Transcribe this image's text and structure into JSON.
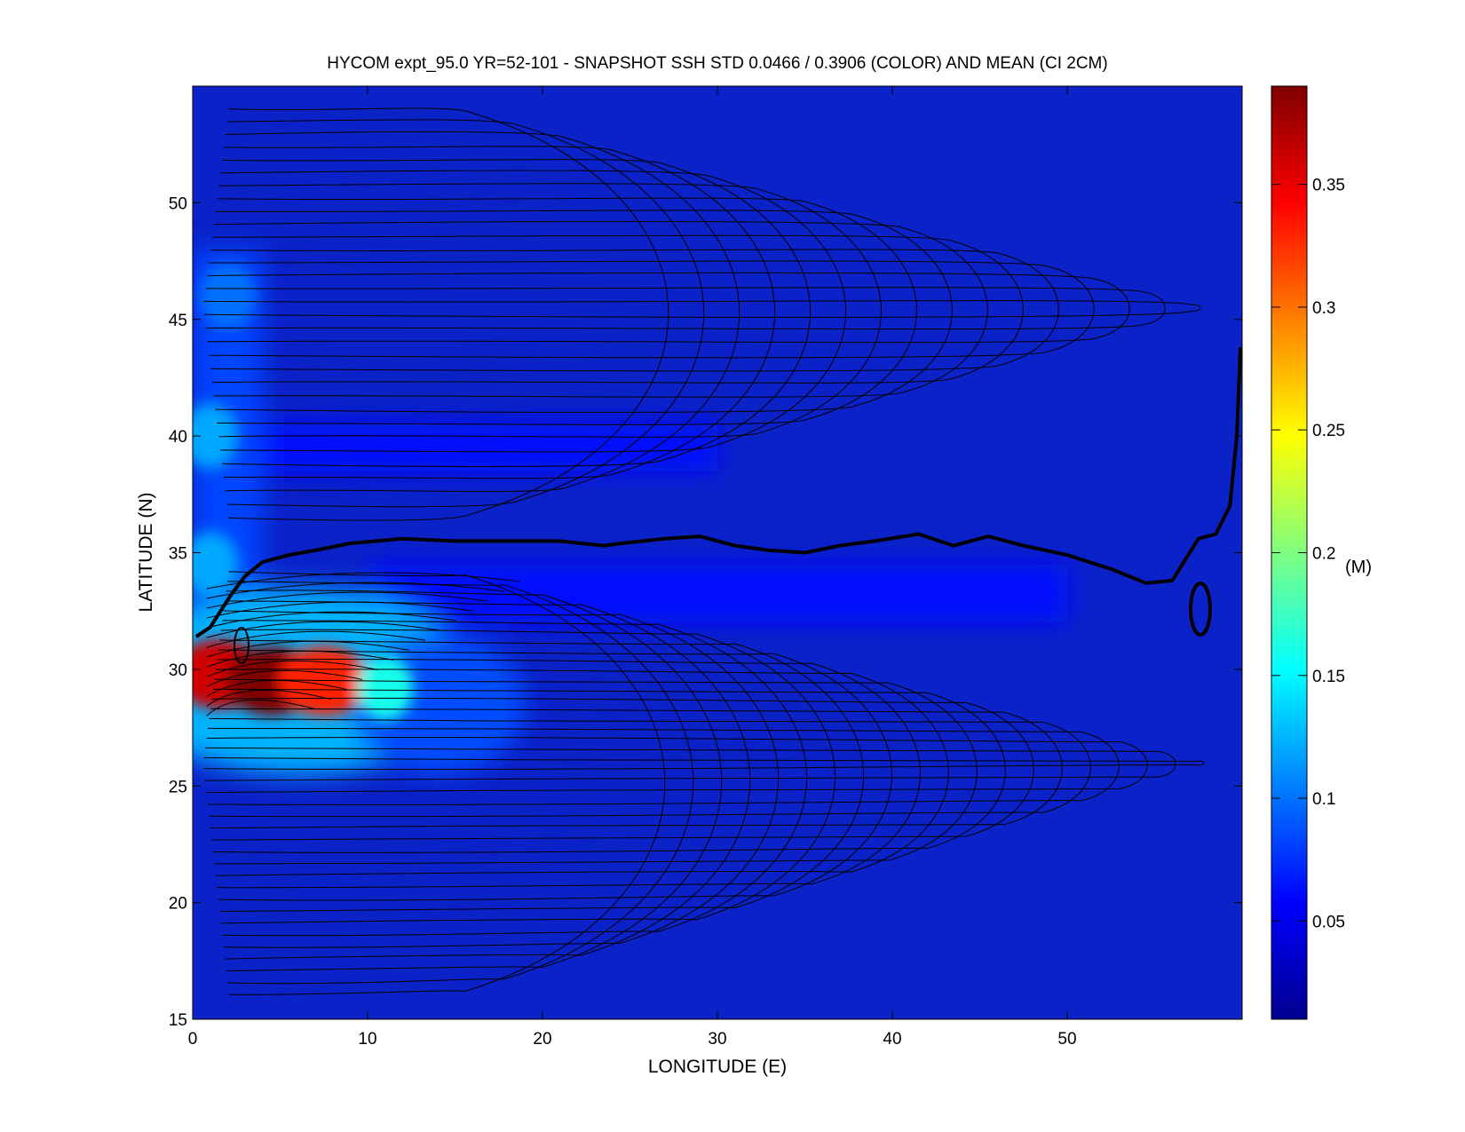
{
  "chart_data": {
    "type": "heatmap",
    "title": "HYCOM expt_95.0 YR=52-101 - SNAPSHOT SSH STD 0.0466 / 0.3906 (COLOR) AND MEAN (CI 2CM)",
    "xlabel": "LONGITUDE (E)",
    "ylabel": "LATITUDE (N)",
    "xlim": [
      0,
      60
    ],
    "ylim": [
      15,
      55
    ],
    "xticks": [
      0,
      10,
      20,
      30,
      40,
      50
    ],
    "yticks": [
      15,
      20,
      25,
      30,
      35,
      40,
      45,
      50
    ],
    "colorbar": {
      "label": "(M)",
      "range": [
        0.01,
        0.39
      ],
      "ticks": [
        0.05,
        0.1,
        0.15,
        0.2,
        0.25,
        0.3,
        0.35
      ],
      "colormap": "jet"
    },
    "field_summary": {
      "std_mean": 0.0466,
      "std_max": 0.3906,
      "background_std": 0.03,
      "hotspots": [
        {
          "lon": 1.5,
          "lat": 29.8,
          "std": 0.36
        },
        {
          "lon": 4.5,
          "lat": 29.5,
          "std": 0.39
        },
        {
          "lon": 7.5,
          "lat": 29.5,
          "std": 0.33
        },
        {
          "lon": 11.0,
          "lat": 29.2,
          "std": 0.16
        },
        {
          "lon": 1.0,
          "lat": 40.0,
          "std": 0.12
        },
        {
          "lon": 2.0,
          "lat": 46.0,
          "std": 0.1
        },
        {
          "lon": 1.0,
          "lat": 34.5,
          "std": 0.12
        }
      ]
    },
    "zero_contour": [
      [
        0.2,
        31.4
      ],
      [
        1.0,
        31.8
      ],
      [
        1.6,
        32.5
      ],
      [
        2.2,
        33.2
      ],
      [
        3.0,
        34.0
      ],
      [
        4.0,
        34.6
      ],
      [
        5.5,
        34.9
      ],
      [
        7.0,
        35.1
      ],
      [
        9.0,
        35.4
      ],
      [
        12.0,
        35.6
      ],
      [
        15.0,
        35.5
      ],
      [
        18.0,
        35.5
      ],
      [
        21.0,
        35.5
      ],
      [
        23.5,
        35.3
      ],
      [
        24.5,
        35.4
      ],
      [
        27.0,
        35.6
      ],
      [
        29.0,
        35.7
      ],
      [
        31.0,
        35.3
      ],
      [
        33.0,
        35.1
      ],
      [
        35.0,
        35.0
      ],
      [
        37.0,
        35.3
      ],
      [
        39.0,
        35.5
      ],
      [
        41.5,
        35.8
      ],
      [
        43.5,
        35.3
      ],
      [
        45.5,
        35.7
      ],
      [
        47.5,
        35.3
      ],
      [
        50.0,
        34.9
      ],
      [
        52.5,
        34.3
      ],
      [
        54.5,
        33.7
      ],
      [
        56.0,
        33.8
      ],
      [
        57.5,
        35.6
      ],
      [
        58.5,
        35.8
      ],
      [
        59.3,
        37.0
      ],
      [
        59.7,
        40.0
      ],
      [
        59.9,
        43.8
      ]
    ]
  }
}
